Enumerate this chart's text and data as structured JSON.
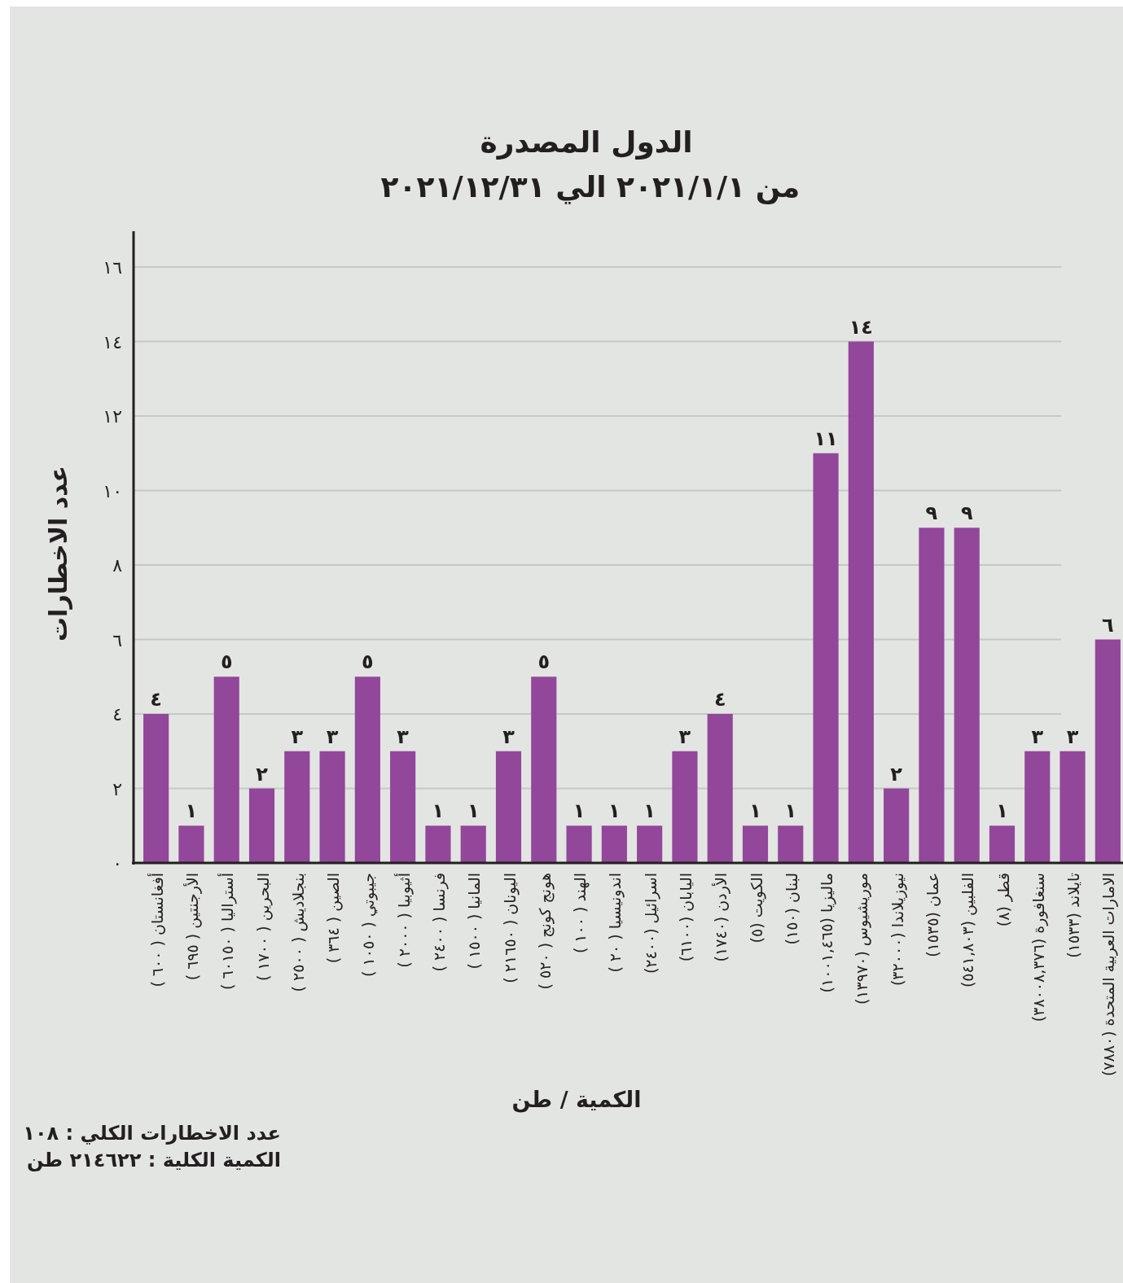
{
  "chart_data": {
    "type": "bar",
    "title": "الدول المصدرة",
    "subtitle": "من ٢٠٢١/١/١ الي ٢٠٢١/١٢/٣١",
    "xlabel": "الكمية / طن",
    "ylabel": "عدد الاخطارات",
    "categories": [
      "أفغانستان ( ٦٠٠ )",
      "الأرجنتين ( ٦٩٥ )",
      "أستراليا ( ٦٠١٥٠ )",
      "البحرين ( ١٧٠٠ )",
      "بنجلاديش ( ٢٥٠٠ )",
      "الصين ( ٣٦٤ )",
      "جيبوتي ( ١٠٥٠ )",
      "أثيوبيا ( ٢٠٠٠ )",
      "فرنسا ( ٢٤٠٠ )",
      "المانيا ( ١٥٠٠ )",
      "اليونان ( ٢١٦٥٠ )",
      "هونج كونج ( ٥٢٠ )",
      "الهند ( ١٠٠ )",
      "اندونيسيا ( ٢٠ )",
      "اسرائيل (٢٤٠٠)",
      "اليابان (٦١٠٠)",
      "الأردن (١٧٤٠)",
      "الكويت (٥)",
      "لبنان (١٥٠)",
      "ماليزيا (١٠٠١,٤٦٥)",
      "موريشيوس (١٣٩٧٠)",
      "نيوزيلاندا (٣٢٠٠٠)",
      "عمان (١٥٣٥)",
      "الفلبين (٥٤١,٨٠٣)",
      "قطر (٨)",
      "سنغافورة (٣٨٠٠٨,٣٧٦)",
      "تايلاند (١٥٣٣)",
      "الامارات العربية المتحدة (٧٨٨٠)"
    ],
    "values": [
      4,
      1,
      5,
      2,
      3,
      3,
      5,
      3,
      1,
      1,
      3,
      5,
      1,
      1,
      1,
      3,
      4,
      1,
      1,
      11,
      14,
      2,
      9,
      9,
      1,
      3,
      3,
      6
    ],
    "value_labels": [
      "٤",
      "١",
      "٥",
      "٢",
      "٣",
      "٣",
      "٥",
      "٣",
      "١",
      "١",
      "٣",
      "٥",
      "١",
      "١",
      "١",
      "٣",
      "٤",
      "١",
      "١",
      "١١",
      "١٤",
      "٢",
      "٩",
      "٩",
      "١",
      "٣",
      "٣",
      "٦"
    ],
    "color": "#92479a",
    "ylim": [
      0,
      16
    ],
    "yticks": [
      {
        "value": 0,
        "label": "٠"
      },
      {
        "value": 2,
        "label": "٢"
      },
      {
        "value": 4,
        "label": "٤"
      },
      {
        "value": 6,
        "label": "٦"
      },
      {
        "value": 8,
        "label": "٨"
      },
      {
        "value": 10,
        "label": "١٠"
      },
      {
        "value": 12,
        "label": "١٢"
      },
      {
        "value": 14,
        "label": "١٤"
      },
      {
        "value": 16,
        "label": "١٦"
      }
    ],
    "grid": "y",
    "annotations": [
      "عدد الاخطارات الكلي : ١٠٨",
      "الكمية الكلية : ٢١٤٦٢٢ طن"
    ]
  }
}
